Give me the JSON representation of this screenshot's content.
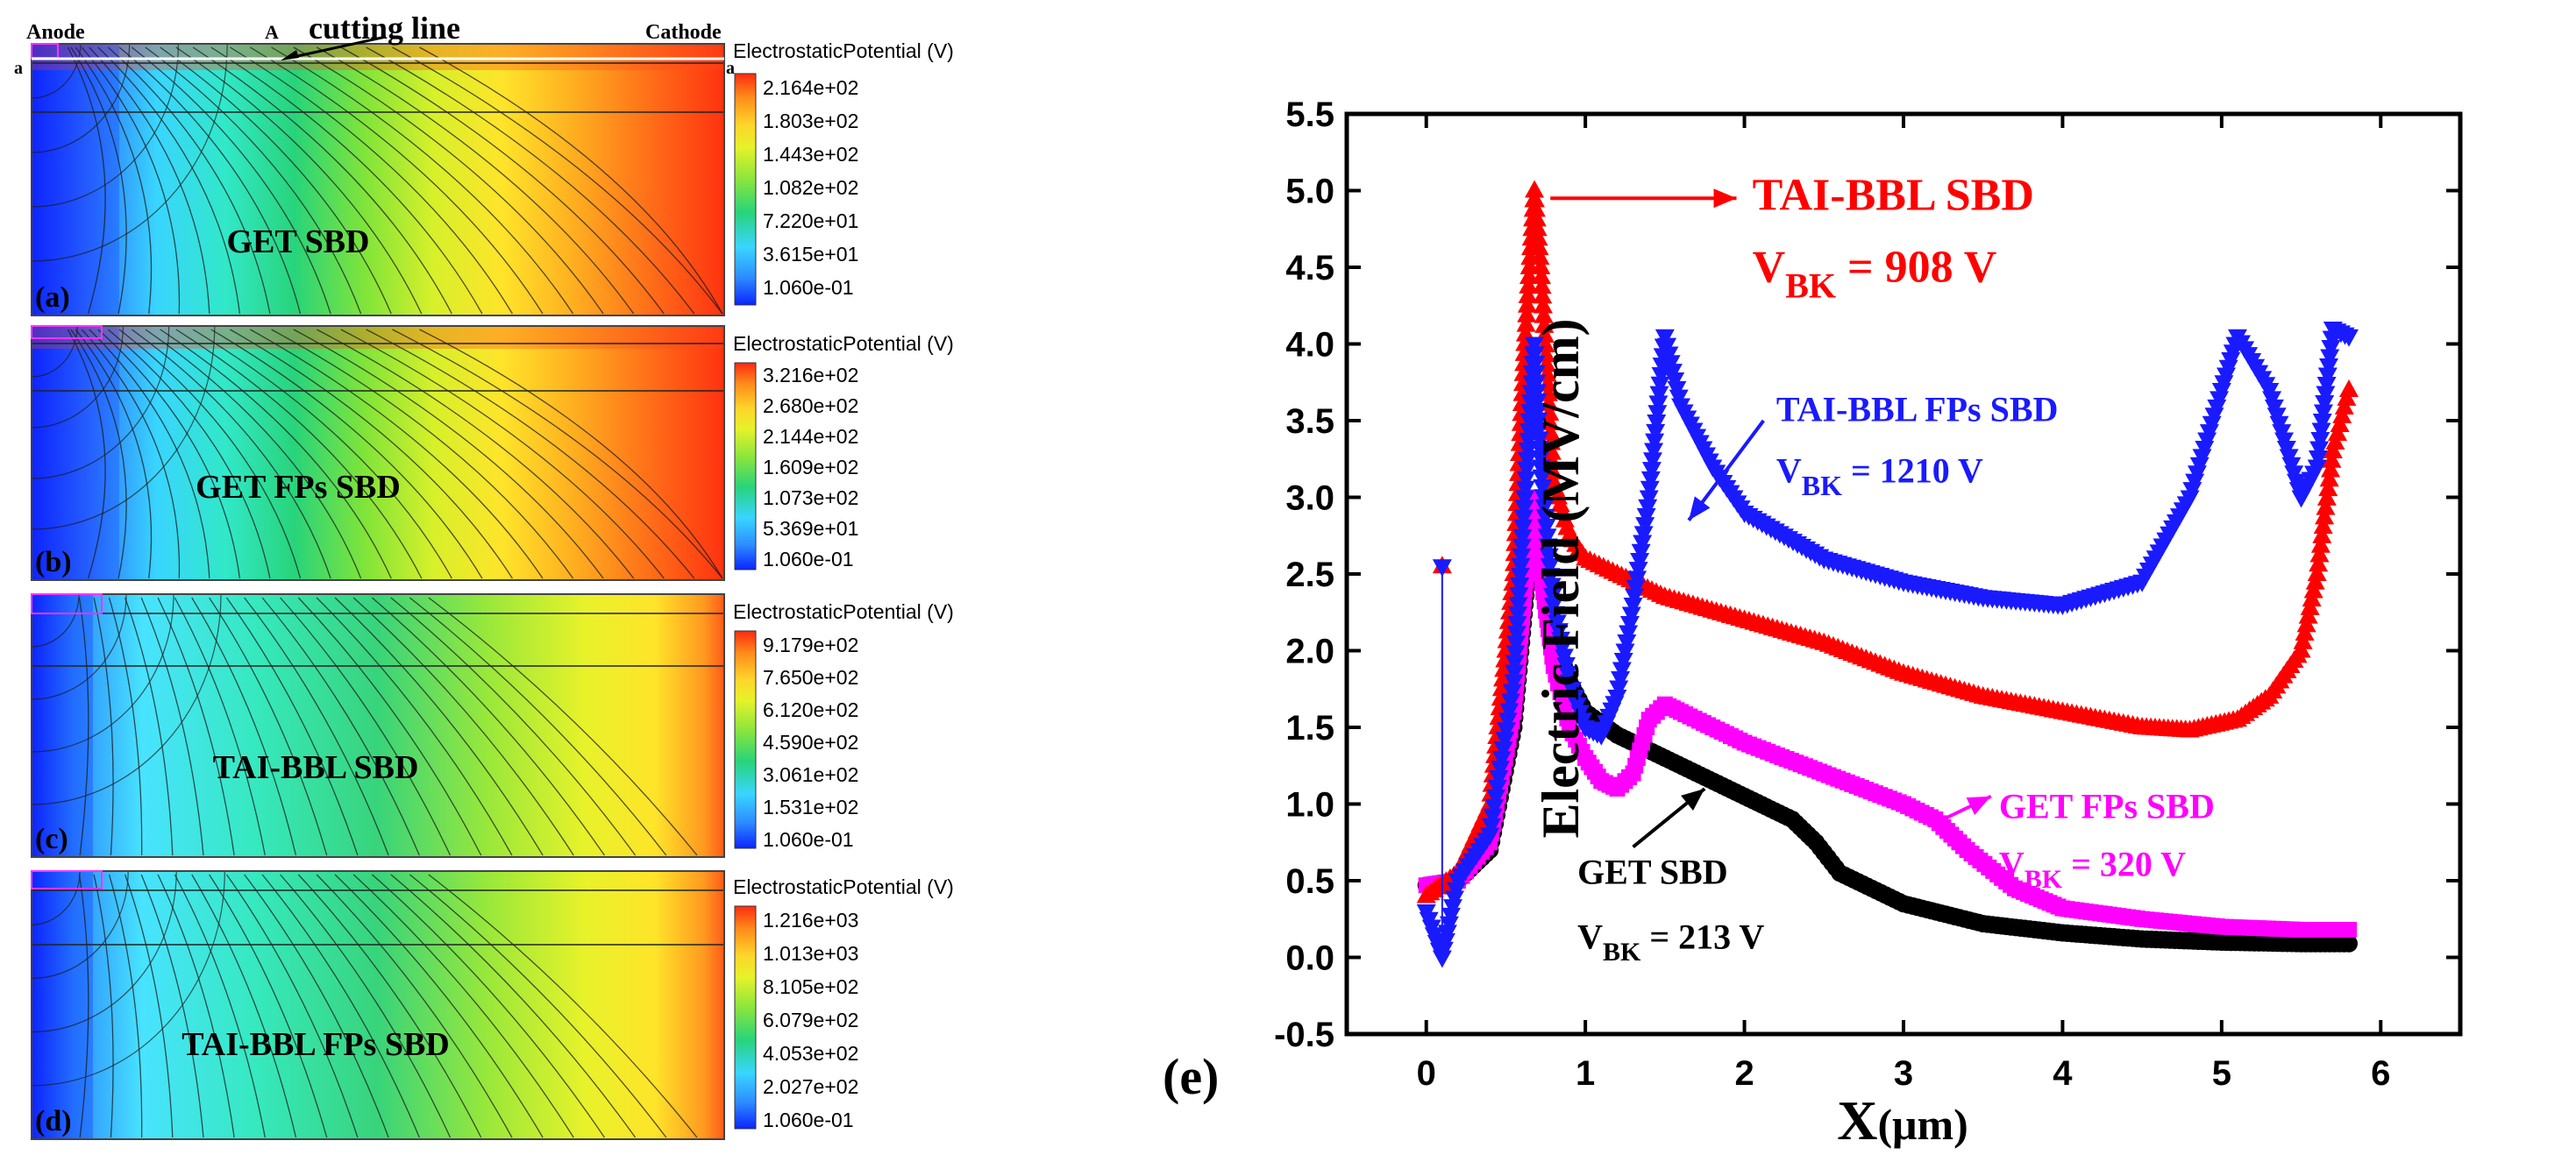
{
  "figure": {
    "legend_title": "ElectrostaticPotential (V)",
    "panels": [
      {
        "panel_label": "(a)",
        "device_label": "GET SBD",
        "ticks": [
          "2.164e+02",
          "1.803e+02",
          "1.443e+02",
          "1.082e+02",
          "7.220e+01",
          "3.615e+01",
          "1.060e-01"
        ],
        "top_labels": {
          "anode": "Anode",
          "a_marker": "A",
          "cutting": "cutting line",
          "cathode": "Cathode",
          "a_left": "a",
          "a_right": "a"
        }
      },
      {
        "panel_label": "(b)",
        "device_label": "GET FPs SBD",
        "ticks": [
          "3.216e+02",
          "2.680e+02",
          "2.144e+02",
          "1.609e+02",
          "1.073e+02",
          "5.369e+01",
          "1.060e-01"
        ]
      },
      {
        "panel_label": "(c)",
        "device_label": "TAI-BBL SBD",
        "ticks": [
          "9.179e+02",
          "7.650e+02",
          "6.120e+02",
          "4.590e+02",
          "3.061e+02",
          "1.531e+02",
          "1.060e-01"
        ]
      },
      {
        "panel_label": "(d)",
        "device_label": "TAI-BBL FPs SBD",
        "ticks": [
          "1.216e+03",
          "1.013e+03",
          "8.105e+02",
          "6.079e+02",
          "4.053e+02",
          "2.027e+02",
          "1.060e-01"
        ]
      }
    ]
  },
  "chart_data": {
    "type": "scatter",
    "panel_label": "(e)",
    "xlabel_main": "X",
    "xlabel_unit": "(μm)",
    "ylabel": "Electric Field (MV/cm)",
    "xlim": [
      -0.5,
      6.5
    ],
    "ylim": [
      -0.5,
      5.5
    ],
    "xticks": [
      0,
      1,
      2,
      3,
      4,
      5,
      6
    ],
    "xtick_labels": [
      "0",
      "1",
      "2",
      "3",
      "4",
      "5",
      "6"
    ],
    "yticks": [
      -0.5,
      0.0,
      0.5,
      1.0,
      1.5,
      2.0,
      2.5,
      3.0,
      3.5,
      4.0,
      4.5,
      5.0,
      5.5
    ],
    "ytick_labels": [
      "-0.5",
      "0.0",
      "0.5",
      "1.0",
      "1.5",
      "2.0",
      "2.5",
      "3.0",
      "3.5",
      "4.0",
      "4.5",
      "5.0",
      "5.5"
    ],
    "annotations": [
      {
        "name": "TAI-BBL SBD",
        "v": "V",
        "sub": "BK",
        "rest": " = 908 V",
        "color": "#ff0000"
      },
      {
        "name": "TAI-BBL FPs SBD",
        "v": "V",
        "sub": "BK",
        "rest": " = 1210 V",
        "color": "#1a1aff"
      },
      {
        "name": "GET FPs SBD",
        "v": "V",
        "sub": "BK",
        "rest": " = 320 V",
        "color": "#ff00ff"
      },
      {
        "name": "GET SBD",
        "v": "V",
        "sub": "BK",
        "rest": " = 213 V",
        "color": "#000000"
      }
    ],
    "series": [
      {
        "name": "GET SBD",
        "color": "#000000",
        "marker": "circle",
        "x": [
          0,
          0.2,
          0.4,
          0.55,
          0.62,
          0.68,
          0.72,
          0.8,
          0.9,
          1.0,
          1.2,
          1.5,
          2.0,
          2.3,
          2.45,
          2.6,
          3.0,
          3.5,
          4.0,
          4.5,
          5.0,
          5.5,
          5.8
        ],
        "y": [
          0.47,
          0.5,
          0.7,
          1.5,
          2.3,
          2.9,
          2.6,
          2.1,
          1.8,
          1.6,
          1.45,
          1.3,
          1.05,
          0.9,
          0.75,
          0.55,
          0.35,
          0.22,
          0.16,
          0.12,
          0.1,
          0.09,
          0.09
        ]
      },
      {
        "name": "GET FPs SBD",
        "color": "#ff00ff",
        "marker": "square",
        "x": [
          0,
          0.2,
          0.4,
          0.55,
          0.62,
          0.68,
          0.72,
          0.8,
          0.9,
          1.0,
          1.1,
          1.2,
          1.3,
          1.4,
          1.5,
          1.6,
          2.0,
          2.5,
          3.0,
          3.2,
          3.4,
          3.7,
          4.0,
          4.5,
          5.0,
          5.5,
          5.8
        ],
        "y": [
          0.47,
          0.5,
          0.75,
          1.6,
          2.4,
          3.0,
          2.5,
          1.9,
          1.5,
          1.3,
          1.15,
          1.1,
          1.2,
          1.55,
          1.65,
          1.6,
          1.4,
          1.2,
          1.0,
          0.9,
          0.7,
          0.45,
          0.32,
          0.25,
          0.2,
          0.18,
          0.18
        ]
      },
      {
        "name": "TAI-BBL SBD",
        "color": "#ff0000",
        "marker": "triangle-up",
        "x": [
          0,
          0.2,
          0.4,
          0.55,
          0.62,
          0.68,
          0.72,
          0.8,
          0.9,
          1.0,
          1.2,
          1.5,
          2.0,
          2.5,
          3.0,
          3.5,
          4.0,
          4.5,
          4.8,
          5.1,
          5.3,
          5.5,
          5.6,
          5.7,
          5.8
        ],
        "y": [
          0.4,
          0.55,
          1.0,
          2.5,
          4.0,
          5.0,
          4.5,
          3.1,
          2.75,
          2.6,
          2.5,
          2.35,
          2.2,
          2.05,
          1.85,
          1.7,
          1.6,
          1.5,
          1.48,
          1.55,
          1.7,
          2.0,
          2.5,
          3.3,
          3.7
        ]
      },
      {
        "name": "TAI-BBL FPs SBD",
        "color": "#1a1aff",
        "marker": "triangle-down",
        "x": [
          0,
          0.1,
          0.2,
          0.4,
          0.55,
          0.62,
          0.68,
          0.72,
          0.8,
          0.9,
          1.0,
          1.1,
          1.2,
          1.3,
          1.4,
          1.5,
          1.6,
          1.8,
          2.0,
          2.5,
          3.0,
          3.5,
          4.0,
          4.5,
          4.8,
          5.0,
          5.1,
          5.3,
          5.5,
          5.6,
          5.7,
          5.8
        ],
        "y": [
          0.3,
          0.0,
          0.5,
          0.8,
          1.8,
          3.0,
          4.0,
          3.2,
          2.3,
          1.8,
          1.5,
          1.45,
          1.7,
          2.3,
          3.0,
          4.05,
          3.6,
          3.2,
          2.9,
          2.6,
          2.45,
          2.35,
          2.3,
          2.45,
          3.0,
          3.7,
          4.05,
          3.7,
          3.0,
          3.2,
          4.1,
          4.05
        ]
      }
    ]
  }
}
